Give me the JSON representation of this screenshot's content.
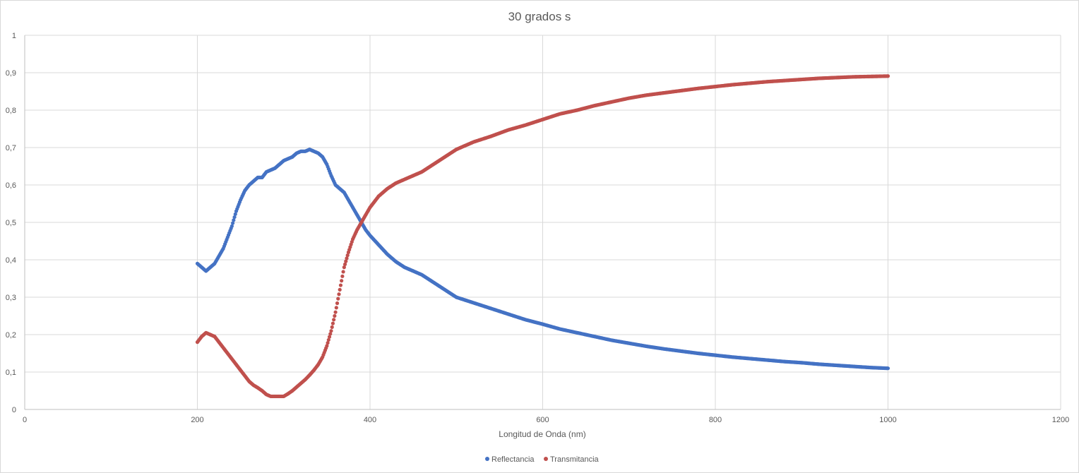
{
  "chart_data": {
    "type": "scatter",
    "title": "30 grados s",
    "xlabel": "Longitud de Onda (nm)",
    "ylabel": "",
    "xlim": [
      0,
      1200
    ],
    "ylim": [
      0,
      1
    ],
    "x_ticks": [
      "0",
      "200",
      "400",
      "600",
      "800",
      "1000",
      "1200"
    ],
    "y_ticks": [
      "0",
      "0,1",
      "0,2",
      "0,3",
      "0,4",
      "0,5",
      "0,6",
      "0,7",
      "0,8",
      "0,9",
      "1"
    ],
    "grid": true,
    "legend_position": "bottom",
    "series": [
      {
        "name": "Reflectancia",
        "color": "#4472C4",
        "points": [
          [
            200,
            0.39
          ],
          [
            205,
            0.38
          ],
          [
            210,
            0.37
          ],
          [
            215,
            0.38
          ],
          [
            220,
            0.39
          ],
          [
            225,
            0.41
          ],
          [
            230,
            0.43
          ],
          [
            235,
            0.46
          ],
          [
            240,
            0.49
          ],
          [
            245,
            0.53
          ],
          [
            250,
            0.56
          ],
          [
            255,
            0.585
          ],
          [
            260,
            0.6
          ],
          [
            265,
            0.61
          ],
          [
            270,
            0.62
          ],
          [
            275,
            0.62
          ],
          [
            280,
            0.635
          ],
          [
            285,
            0.64
          ],
          [
            290,
            0.645
          ],
          [
            295,
            0.655
          ],
          [
            300,
            0.665
          ],
          [
            305,
            0.67
          ],
          [
            310,
            0.675
          ],
          [
            315,
            0.685
          ],
          [
            320,
            0.69
          ],
          [
            325,
            0.69
          ],
          [
            330,
            0.695
          ],
          [
            335,
            0.69
          ],
          [
            340,
            0.685
          ],
          [
            345,
            0.675
          ],
          [
            350,
            0.655
          ],
          [
            355,
            0.625
          ],
          [
            360,
            0.6
          ],
          [
            365,
            0.59
          ],
          [
            370,
            0.58
          ],
          [
            375,
            0.56
          ],
          [
            380,
            0.54
          ],
          [
            385,
            0.52
          ],
          [
            390,
            0.5
          ],
          [
            395,
            0.48
          ],
          [
            400,
            0.465
          ],
          [
            410,
            0.44
          ],
          [
            420,
            0.415
          ],
          [
            430,
            0.395
          ],
          [
            440,
            0.38
          ],
          [
            450,
            0.37
          ],
          [
            460,
            0.36
          ],
          [
            470,
            0.345
          ],
          [
            480,
            0.33
          ],
          [
            490,
            0.315
          ],
          [
            500,
            0.3
          ],
          [
            520,
            0.285
          ],
          [
            540,
            0.27
          ],
          [
            560,
            0.255
          ],
          [
            580,
            0.24
          ],
          [
            600,
            0.228
          ],
          [
            620,
            0.215
          ],
          [
            640,
            0.205
          ],
          [
            660,
            0.195
          ],
          [
            680,
            0.185
          ],
          [
            700,
            0.177
          ],
          [
            720,
            0.169
          ],
          [
            740,
            0.162
          ],
          [
            760,
            0.156
          ],
          [
            780,
            0.15
          ],
          [
            800,
            0.145
          ],
          [
            820,
            0.14
          ],
          [
            840,
            0.136
          ],
          [
            860,
            0.132
          ],
          [
            880,
            0.128
          ],
          [
            900,
            0.125
          ],
          [
            920,
            0.121
          ],
          [
            940,
            0.118
          ],
          [
            960,
            0.115
          ],
          [
            980,
            0.112
          ],
          [
            1000,
            0.11
          ]
        ]
      },
      {
        "name": "Transmitancia",
        "color": "#C0504D",
        "points": [
          [
            200,
            0.18
          ],
          [
            205,
            0.195
          ],
          [
            210,
            0.205
          ],
          [
            215,
            0.2
          ],
          [
            220,
            0.195
          ],
          [
            225,
            0.18
          ],
          [
            230,
            0.165
          ],
          [
            235,
            0.15
          ],
          [
            240,
            0.135
          ],
          [
            245,
            0.12
          ],
          [
            250,
            0.105
          ],
          [
            255,
            0.09
          ],
          [
            260,
            0.075
          ],
          [
            265,
            0.065
          ],
          [
            270,
            0.058
          ],
          [
            275,
            0.05
          ],
          [
            280,
            0.04
          ],
          [
            285,
            0.035
          ],
          [
            290,
            0.035
          ],
          [
            295,
            0.035
          ],
          [
            300,
            0.035
          ],
          [
            305,
            0.042
          ],
          [
            310,
            0.05
          ],
          [
            315,
            0.06
          ],
          [
            320,
            0.07
          ],
          [
            325,
            0.08
          ],
          [
            330,
            0.092
          ],
          [
            335,
            0.105
          ],
          [
            340,
            0.12
          ],
          [
            345,
            0.14
          ],
          [
            350,
            0.17
          ],
          [
            355,
            0.21
          ],
          [
            360,
            0.26
          ],
          [
            365,
            0.32
          ],
          [
            370,
            0.38
          ],
          [
            375,
            0.42
          ],
          [
            380,
            0.455
          ],
          [
            385,
            0.48
          ],
          [
            390,
            0.5
          ],
          [
            395,
            0.52
          ],
          [
            400,
            0.54
          ],
          [
            410,
            0.57
          ],
          [
            420,
            0.59
          ],
          [
            430,
            0.605
          ],
          [
            440,
            0.615
          ],
          [
            450,
            0.625
          ],
          [
            460,
            0.635
          ],
          [
            470,
            0.65
          ],
          [
            480,
            0.665
          ],
          [
            490,
            0.68
          ],
          [
            500,
            0.695
          ],
          [
            520,
            0.715
          ],
          [
            540,
            0.73
          ],
          [
            560,
            0.747
          ],
          [
            580,
            0.76
          ],
          [
            600,
            0.775
          ],
          [
            620,
            0.79
          ],
          [
            640,
            0.8
          ],
          [
            660,
            0.812
          ],
          [
            680,
            0.822
          ],
          [
            700,
            0.832
          ],
          [
            720,
            0.84
          ],
          [
            740,
            0.846
          ],
          [
            760,
            0.852
          ],
          [
            780,
            0.858
          ],
          [
            800,
            0.863
          ],
          [
            820,
            0.868
          ],
          [
            840,
            0.872
          ],
          [
            860,
            0.876
          ],
          [
            880,
            0.879
          ],
          [
            900,
            0.882
          ],
          [
            920,
            0.885
          ],
          [
            940,
            0.887
          ],
          [
            960,
            0.889
          ],
          [
            980,
            0.89
          ],
          [
            1000,
            0.891
          ]
        ]
      }
    ]
  }
}
